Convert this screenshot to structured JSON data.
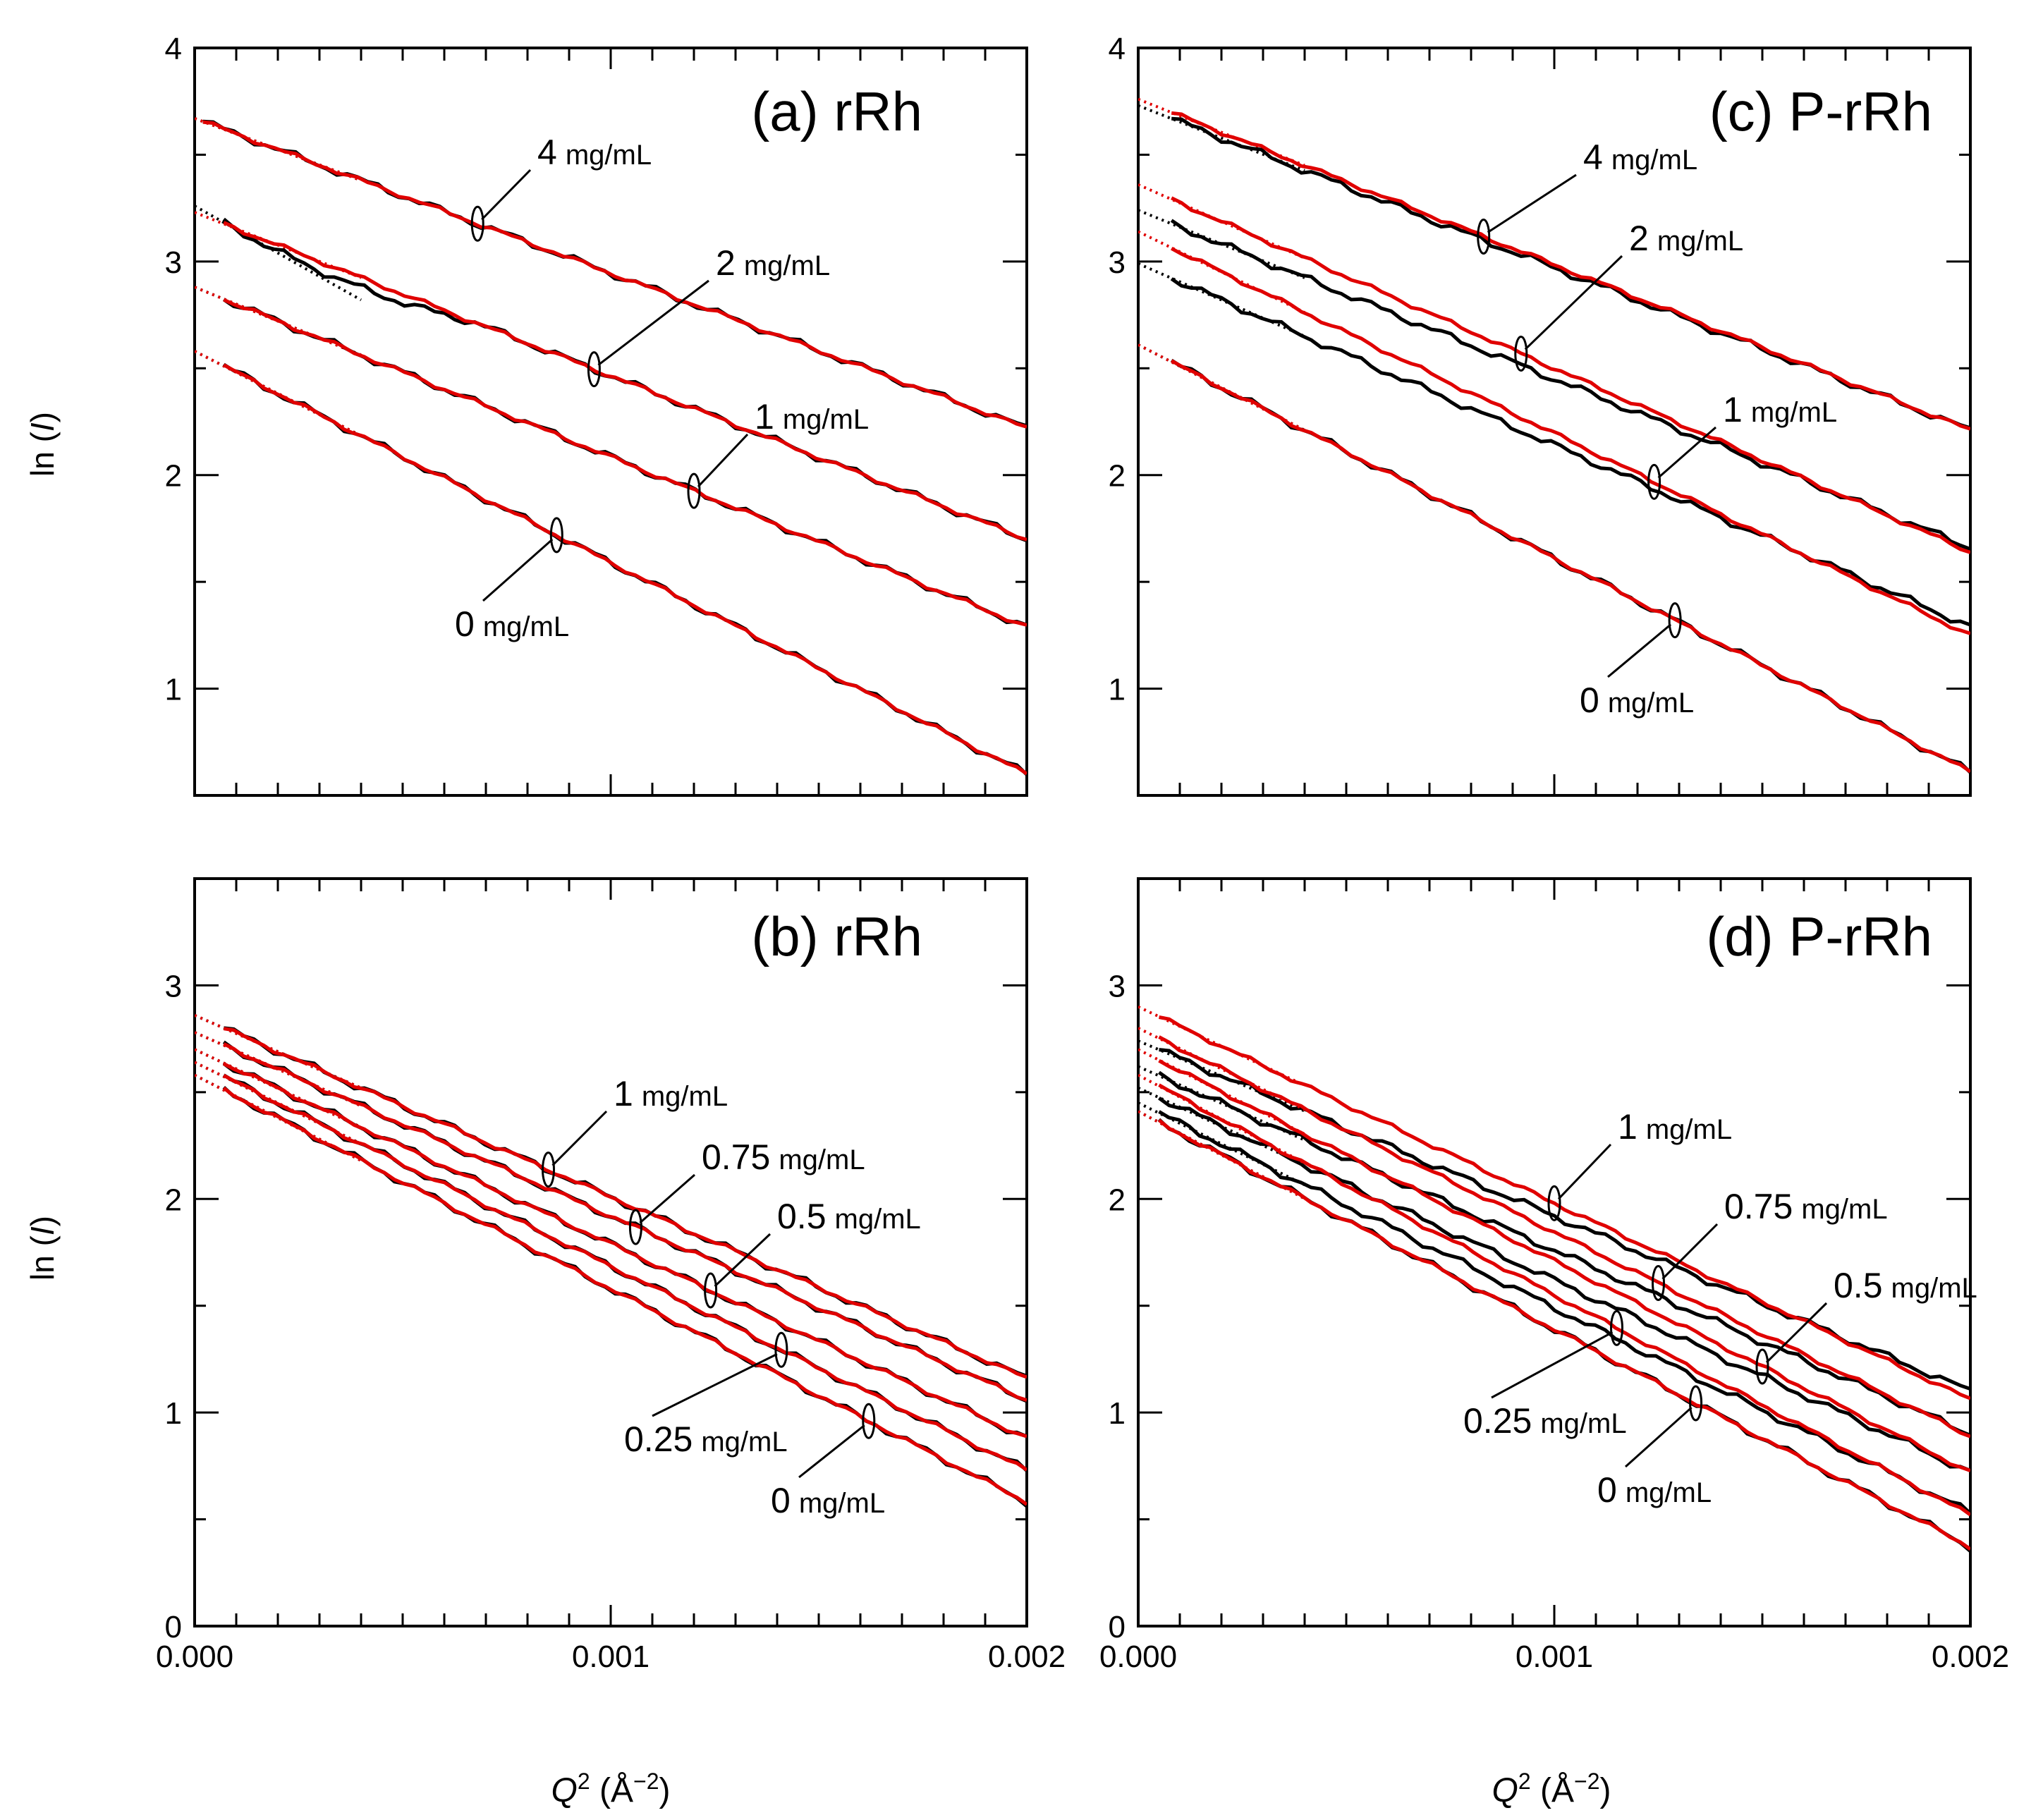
{
  "figure": {
    "xlabel_q": "Q",
    "xlabel_exp": "2",
    "xlabel_unit_open": " (Å",
    "xlabel_unit_exp": "−2",
    "xlabel_unit_close": ")",
    "ylabel_prefix": "ln (",
    "ylabel_var": "I",
    "ylabel_suffix": ")",
    "colors": {
      "raw": "#000000",
      "fit": "#e00000",
      "axis": "#000000"
    }
  },
  "chart_data": [
    {
      "id": "a",
      "type": "line",
      "title": "(a) rRh",
      "xlim": [
        0,
        0.002
      ],
      "ylim": [
        0.5,
        4
      ],
      "xticks": [
        "0.000",
        "0.001",
        "0.002"
      ],
      "xtick_values": [
        0,
        0.001,
        0.002
      ],
      "yticks": [
        "1",
        "2",
        "3",
        "4"
      ],
      "ytick_values": [
        1,
        2,
        3,
        4
      ],
      "series": [
        {
          "name": "4 mg/mL",
          "conc": "4",
          "unit": "mg/mL",
          "intercept": 3.67,
          "slope": -725,
          "data_start": 2e-05,
          "intercept_black": 3.67,
          "slope_black": -725,
          "marker_x": 0.00068
        },
        {
          "name": "2 mg/mL",
          "conc": "2",
          "unit": "mg/mL",
          "intercept": 3.23,
          "slope": -765,
          "data_start": 7e-05,
          "intercept_black": 3.26,
          "slope_black": -1100,
          "marker_x": 0.00096
        },
        {
          "name": "1 mg/mL",
          "conc": "1",
          "unit": "mg/mL",
          "intercept": 2.88,
          "slope": -795,
          "data_start": 7e-05,
          "intercept_black": 2.88,
          "slope_black": -795,
          "marker_x": 0.0012
        },
        {
          "name": "0 mg/mL",
          "conc": "0",
          "unit": "mg/mL",
          "intercept": 2.58,
          "slope": -990,
          "data_start": 7e-05,
          "intercept_black": 2.58,
          "slope_black": -990,
          "marker_x": 0.00087
        }
      ]
    },
    {
      "id": "b",
      "type": "line",
      "title": "(b) rRh",
      "xlim": [
        0,
        0.002
      ],
      "ylim": [
        0,
        3.5
      ],
      "xticks": [
        "0.000",
        "0.001",
        "0.002"
      ],
      "xtick_values": [
        0,
        0.001,
        0.002
      ],
      "yticks": [
        "0",
        "1",
        "2",
        "3"
      ],
      "ytick_values": [
        0,
        1,
        2,
        3
      ],
      "series": [
        {
          "name": "1 mg/mL",
          "conc": "1",
          "unit": "mg/mL",
          "intercept": 2.86,
          "slope": -850,
          "data_start": 7e-05,
          "intercept_black": 2.86,
          "slope_black": -850,
          "marker_x": 0.00085
        },
        {
          "name": "0.75 mg/mL",
          "conc": "0.75",
          "unit": "mg/mL",
          "intercept": 2.78,
          "slope": -860,
          "data_start": 7e-05,
          "intercept_black": 2.78,
          "slope_black": -860,
          "marker_x": 0.00106
        },
        {
          "name": "0.5 mg/mL",
          "conc": "0.5",
          "unit": "mg/mL",
          "intercept": 2.7,
          "slope": -910,
          "data_start": 7e-05,
          "intercept_black": 2.7,
          "slope_black": -910,
          "marker_x": 0.00124
        },
        {
          "name": "0.25 mg/mL",
          "conc": "0.25",
          "unit": "mg/mL",
          "intercept": 2.64,
          "slope": -955,
          "data_start": 7e-05,
          "intercept_black": 2.64,
          "slope_black": -955,
          "marker_x": 0.00141
        },
        {
          "name": "0 mg/mL",
          "conc": "0",
          "unit": "mg/mL",
          "intercept": 2.58,
          "slope": -1000,
          "data_start": 7e-05,
          "intercept_black": 2.58,
          "slope_black": -1000,
          "marker_x": 0.00162
        }
      ]
    },
    {
      "id": "c",
      "type": "line",
      "title": "(c) P-rRh",
      "xlim": [
        0,
        0.002
      ],
      "ylim": [
        0.5,
        4
      ],
      "xticks": [
        "0.000",
        "0.001",
        "0.002"
      ],
      "xtick_values": [
        0,
        0.001,
        0.002
      ],
      "yticks": [
        "1",
        "2",
        "3",
        "4"
      ],
      "ytick_values": [
        1,
        2,
        3,
        4
      ],
      "series": [
        {
          "name": "4 mg/mL",
          "conc": "4",
          "unit": "mg/mL",
          "intercept": 3.76,
          "slope": -775,
          "data_start": 8e-05,
          "intercept_black": 3.73,
          "slope_black": -760,
          "marker_x": 0.00083
        },
        {
          "name": "2 mg/mL",
          "conc": "2",
          "unit": "mg/mL",
          "intercept": 3.36,
          "slope": -860,
          "data_start": 8e-05,
          "intercept_black": 3.24,
          "slope_black": -790,
          "marker_x": 0.00092
        },
        {
          "name": "1 mg/mL",
          "conc": "1",
          "unit": "mg/mL",
          "intercept": 3.14,
          "slope": -945,
          "data_start": 8e-05,
          "intercept_black": 2.99,
          "slope_black": -850,
          "marker_x": 0.00124
        },
        {
          "name": "0 mg/mL",
          "conc": "0",
          "unit": "mg/mL",
          "intercept": 2.61,
          "slope": -1000,
          "data_start": 8e-05,
          "intercept_black": 2.61,
          "slope_black": -1000,
          "marker_x": 0.00129
        }
      ]
    },
    {
      "id": "d",
      "type": "line",
      "title": "(d) P-rRh",
      "xlim": [
        0,
        0.002
      ],
      "ylim": [
        0,
        3.5
      ],
      "xticks": [
        "0.000",
        "0.001",
        "0.002"
      ],
      "xtick_values": [
        0,
        0.001,
        0.002
      ],
      "yticks": [
        "0",
        "1",
        "2",
        "3"
      ],
      "ytick_values": [
        0,
        1,
        2,
        3
      ],
      "series": [
        {
          "name": "1 mg/mL",
          "conc": "1",
          "unit": "mg/mL",
          "intercept": 2.9,
          "slope": -920,
          "data_start": 5e-05,
          "intercept_black": 2.74,
          "slope_black": -820,
          "marker_x": 0.001
        },
        {
          "name": "0.75 mg/mL",
          "conc": "0.75",
          "unit": "mg/mL",
          "intercept": 2.8,
          "slope": -955,
          "data_start": 5e-05,
          "intercept_black": 2.62,
          "slope_black": -860,
          "marker_x": 0.00125
        },
        {
          "name": "0.5 mg/mL",
          "conc": "0.5",
          "unit": "mg/mL",
          "intercept": 2.7,
          "slope": -990,
          "data_start": 5e-05,
          "intercept_black": 2.52,
          "slope_black": -900,
          "marker_x": 0.0015
        },
        {
          "name": "0.25 mg/mL",
          "conc": "0.25",
          "unit": "mg/mL",
          "intercept": 2.58,
          "slope": -1030,
          "data_start": 5e-05,
          "intercept_black": 2.45,
          "slope_black": -960,
          "marker_x": 0.00115
        },
        {
          "name": "0 mg/mL",
          "conc": "0",
          "unit": "mg/mL",
          "intercept": 2.41,
          "slope": -1020,
          "data_start": 5e-05,
          "intercept_black": 2.41,
          "slope_black": -1020,
          "marker_x": 0.00134
        }
      ]
    }
  ]
}
